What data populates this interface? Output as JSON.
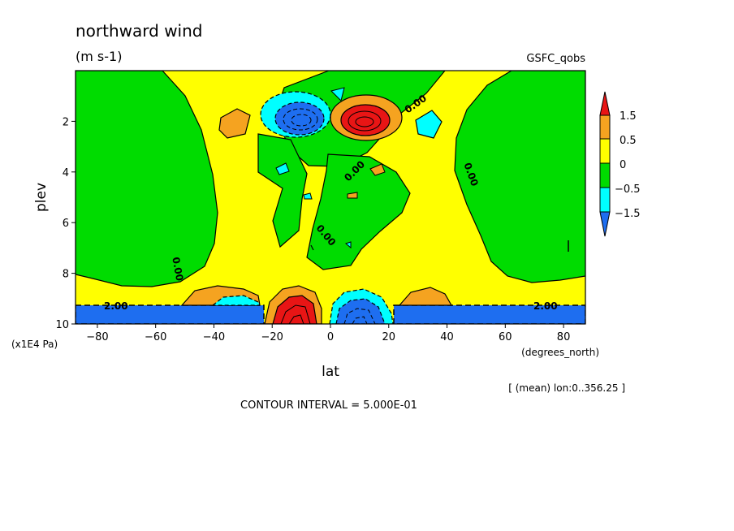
{
  "chart_data": {
    "type": "contour",
    "title": "northward wind",
    "units": "(m s-1)",
    "dataset": "GSFC_qobs",
    "xlabel": "lat",
    "xunits": "(degrees_north)",
    "ylabel": "plev",
    "yunits": "(x1E4 Pa)",
    "xlim": [
      -87.5,
      87.5
    ],
    "ylim": [
      10,
      0
    ],
    "x_ticks": [
      -80,
      -60,
      -40,
      -20,
      0,
      20,
      40,
      60,
      80
    ],
    "x_tick_labels": [
      "−80",
      "−60",
      "−40",
      "−20",
      "0",
      "20",
      "40",
      "60",
      "80"
    ],
    "y_ticks": [
      2,
      4,
      6,
      8,
      10
    ],
    "y_tick_labels": [
      "2",
      "4",
      "6",
      "8",
      "10"
    ],
    "averaging_note": "[ (mean) lon:0..356.25 ]",
    "contour_interval_text": "CONTOUR INTERVAL = 5.000E-01",
    "contour_labels": [
      {
        "text": "0.00",
        "lat": 30,
        "plev": 1.2
      },
      {
        "text": "0.00",
        "lat": 5,
        "plev": 3.8
      },
      {
        "text": "0.00",
        "lat": 44,
        "plev": 4.0
      },
      {
        "text": "0.00",
        "lat": -3,
        "plev": 6.6
      },
      {
        "text": "0.00",
        "lat": -56,
        "plev": 7.7
      },
      {
        "text": "2.00",
        "lat": -77,
        "plev": 9.2
      },
      {
        "text": "2.00",
        "lat": 77,
        "plev": 9.2
      }
    ],
    "colorbar": {
      "levels": [
        -1.5,
        -0.5,
        0,
        0.5,
        1.5
      ],
      "level_labels": [
        "1.5",
        "0.5",
        "0",
        "−0.5",
        "−1.5"
      ],
      "colors": [
        "#e81515",
        "#f5a320",
        "#ffff00",
        "#00dc00",
        "#00ffff",
        "#1e6ef0"
      ]
    },
    "regions": [
      {
        "name": "background",
        "value_range": "0 to 0.5",
        "color": "#ffff00"
      },
      {
        "name": "west-band",
        "value_range": "-0.5 to 0",
        "color": "#00dc00"
      },
      {
        "name": "east-band",
        "value_range": "-0.5 to 0",
        "color": "#00dc00"
      },
      {
        "name": "center-top",
        "value_range": "-0.5 to 0",
        "color": "#00dc00"
      },
      {
        "name": "center-left",
        "value_range": "-0.5 to 0",
        "color": "#00dc00"
      },
      {
        "name": "center-lower",
        "value_range": "-0.5 to 0",
        "color": "#00dc00"
      },
      {
        "name": "surface-band",
        "value_range": "< -1.5",
        "color": "#1e6ef0"
      },
      {
        "name": "upper-negative-cell",
        "center_lat": -10,
        "center_plev": 2,
        "value_range": "< -1.5",
        "color": "#1e6ef0"
      },
      {
        "name": "upper-positive-cell",
        "center_lat": 10,
        "center_plev": 2,
        "value_range": "> 1.5",
        "color": "#e81515"
      },
      {
        "name": "lower-positive-cell",
        "center_lat": -12,
        "center_plev": 9.6,
        "value_range": "> 1.5",
        "color": "#e81515"
      },
      {
        "name": "lower-negative-cell",
        "center_lat": 11,
        "center_plev": 9.5,
        "value_range": "< -1.5",
        "color": "#1e6ef0"
      },
      {
        "name": "orange-blob-west",
        "center_lat": -35,
        "center_plev": 2.2,
        "value_range": "0.5 to 1.5",
        "color": "#f5a320"
      },
      {
        "name": "cyan-blob-east",
        "center_lat": 34,
        "center_plev": 2.3,
        "value_range": "-1.5 to -0.5",
        "color": "#00ffff"
      }
    ]
  }
}
